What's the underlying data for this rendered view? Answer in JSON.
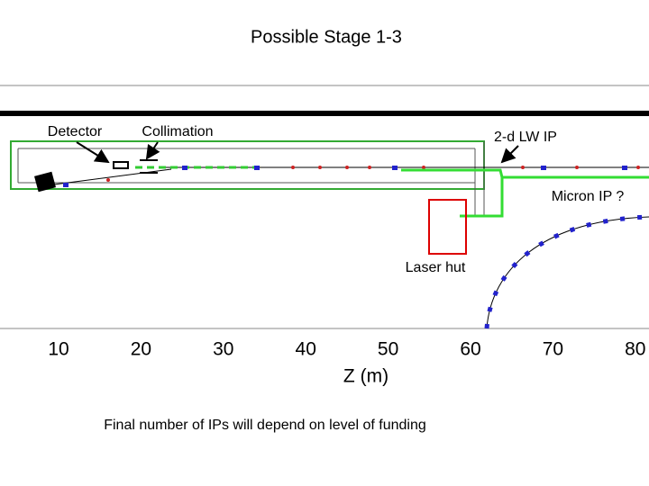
{
  "header": {
    "title": "Possible Stage 1-3"
  },
  "labels": {
    "detector": "Detector",
    "collimation": "Collimation",
    "lw_ip": "2-d LW IP",
    "micron_ip": "Micron IP ?",
    "laser_hut": "Laser hut"
  },
  "axis": {
    "label": "Z (m)",
    "ticks": [
      "10",
      "20",
      "30",
      "40",
      "50",
      "60",
      "70",
      "80"
    ]
  },
  "footer": {
    "note": "Final number of IPs  will depend on level of funding"
  }
}
